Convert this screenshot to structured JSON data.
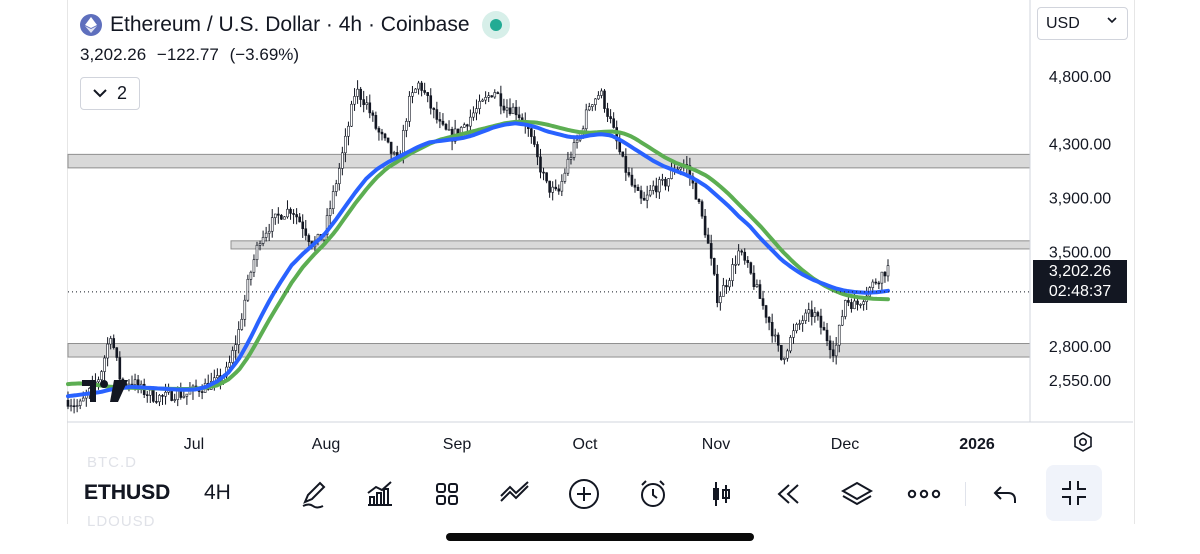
{
  "chart": {
    "symbol_name": "Ethereum / U.S. Dollar",
    "interval_label": "4h",
    "exchange": "Coinbase",
    "last_price": "3,202.26",
    "change": "−122.77",
    "change_pct": "(−3.69%)",
    "indicator_count": "2",
    "currency": "USD",
    "countdown": "02:48:37",
    "price_axis": [
      4800,
      4300,
      3900,
      3500,
      2800,
      2550
    ],
    "price_axis_labels": [
      "4,800.00",
      "4,300.00",
      "3,900.00",
      "3,500.00",
      "2,800.00",
      "2,550.00"
    ],
    "time_axis_labels": [
      "Jul",
      "Aug",
      "Sep",
      "Oct",
      "Nov",
      "Dec",
      "2026"
    ],
    "y_range": [
      2400,
      5000
    ],
    "support_resistance_zones": [
      [
        4120,
        4220
      ],
      [
        3520,
        3580
      ],
      [
        2720,
        2820
      ]
    ],
    "ma_fast_color": "#2962ff",
    "ma_slow_color": "#5cae52",
    "candle_color": "#131722",
    "zone_color": "#d9d9d9",
    "price_series": [
      2400,
      2350,
      2460,
      2580,
      2900,
      2520,
      2540,
      2470,
      2430,
      2420,
      2450,
      2440,
      2480,
      2510,
      2540,
      2620,
      2900,
      3300,
      3600,
      3700,
      3780,
      3820,
      3700,
      3550,
      3620,
      3950,
      4300,
      4700,
      4600,
      4400,
      4280,
      4150,
      4600,
      4750,
      4580,
      4420,
      4350,
      4420,
      4520,
      4600,
      4700,
      4580,
      4550,
      4450,
      4200,
      3980,
      3920,
      4180,
      4350,
      4600,
      4680,
      4450,
      4180,
      3980,
      3850,
      3980,
      4000,
      4120,
      4150,
      3920,
      3600,
      3150,
      3300,
      3500,
      3350,
      3150,
      2950,
      2700,
      2880,
      3000,
      3050,
      2900,
      2750,
      3150,
      3100,
      3200,
      3300,
      3380
    ],
    "ma_fast": [
      2430,
      2440,
      2450,
      2460,
      2480,
      2490,
      2500,
      2495,
      2490,
      2485,
      2480,
      2478,
      2480,
      2500,
      2540,
      2600,
      2700,
      2840,
      3000,
      3150,
      3280,
      3400,
      3480,
      3550,
      3620,
      3720,
      3830,
      3940,
      4040,
      4110,
      4160,
      4200,
      4240,
      4280,
      4310,
      4320,
      4330,
      4340,
      4360,
      4390,
      4420,
      4440,
      4450,
      4440,
      4420,
      4390,
      4370,
      4350,
      4345,
      4360,
      4370,
      4360,
      4320,
      4270,
      4220,
      4170,
      4130,
      4100,
      4070,
      4030,
      3980,
      3910,
      3840,
      3760,
      3690,
      3600,
      3520,
      3440,
      3380,
      3330,
      3290,
      3260,
      3230,
      3210,
      3200,
      3195,
      3200,
      3210
    ],
    "ma_slow": [
      2520,
      2525,
      2520,
      2510,
      2500,
      2495,
      2492,
      2490,
      2488,
      2486,
      2484,
      2483,
      2485,
      2495,
      2510,
      2550,
      2620,
      2730,
      2870,
      3010,
      3140,
      3270,
      3380,
      3470,
      3550,
      3640,
      3750,
      3860,
      3960,
      4050,
      4120,
      4170,
      4220,
      4260,
      4300,
      4330,
      4350,
      4370,
      4390,
      4410,
      4430,
      4450,
      4460,
      4460,
      4455,
      4440,
      4420,
      4400,
      4385,
      4380,
      4385,
      4390,
      4380,
      4350,
      4300,
      4250,
      4200,
      4160,
      4130,
      4100,
      4060,
      4000,
      3930,
      3850,
      3770,
      3690,
      3600,
      3510,
      3430,
      3360,
      3300,
      3250,
      3210,
      3180,
      3165,
      3155,
      3150,
      3148
    ]
  },
  "toolbar": {
    "symbol_label": "ETHUSD",
    "interval_label": "4H",
    "ghost_above": "BTC.D",
    "ghost_below": "LDOUSD",
    "icons": [
      "pen-icon",
      "indicators-icon",
      "templates-icon",
      "compare-icon",
      "add-icon",
      "alert-icon",
      "candles-icon",
      "replay-icon",
      "layers-icon",
      "more-icon",
      "undo-icon",
      "fullscreen-exit-icon"
    ]
  }
}
